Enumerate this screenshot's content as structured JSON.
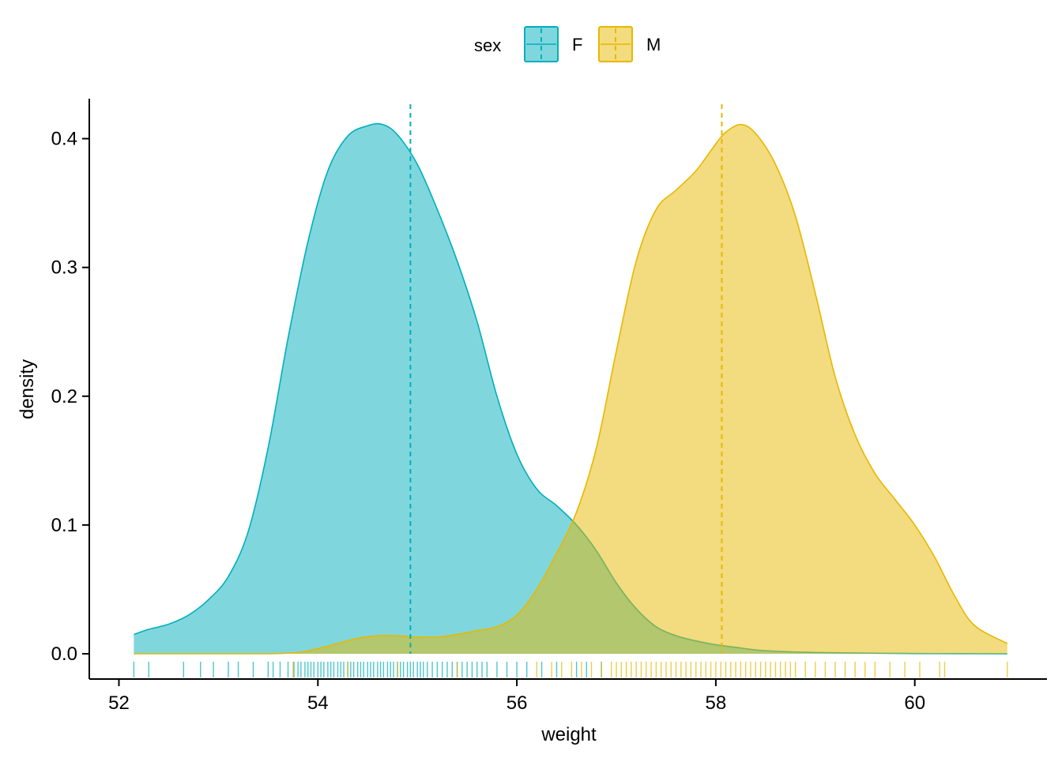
{
  "chart_data": {
    "type": "area",
    "title": "",
    "xlabel": "weight",
    "ylabel": "density",
    "xlim": [
      51.9,
      61.2
    ],
    "ylim": [
      -0.02,
      0.43
    ],
    "x_ticks": [
      52,
      54,
      56,
      58,
      60
    ],
    "y_ticks": [
      0.0,
      0.1,
      0.2,
      0.3,
      0.4
    ],
    "x_tick_labels": [
      "52",
      "54",
      "56",
      "58",
      "60"
    ],
    "y_tick_labels": [
      "0.0",
      "0.1",
      "0.2",
      "0.3",
      "0.4"
    ],
    "grid": false,
    "legend": {
      "title": "sex",
      "position": "top"
    },
    "series": [
      {
        "name": "F",
        "color": "#00AFBB",
        "fill_opacity": 0.5,
        "mean": 54.93,
        "x": [
          52.15,
          52.3,
          52.5,
          52.7,
          52.9,
          53.1,
          53.3,
          53.5,
          53.7,
          53.9,
          54.1,
          54.3,
          54.5,
          54.65,
          54.8,
          55.0,
          55.2,
          55.4,
          55.6,
          55.8,
          56.0,
          56.2,
          56.4,
          56.6,
          56.8,
          57.0,
          57.2,
          57.4,
          57.6,
          57.8,
          58.0,
          58.2,
          58.4,
          58.6,
          59.0,
          59.5,
          60.0,
          60.5,
          60.93
        ],
        "y": [
          0.015,
          0.019,
          0.023,
          0.03,
          0.042,
          0.06,
          0.095,
          0.16,
          0.245,
          0.32,
          0.375,
          0.402,
          0.41,
          0.411,
          0.403,
          0.38,
          0.345,
          0.305,
          0.258,
          0.2,
          0.155,
          0.128,
          0.115,
          0.1,
          0.08,
          0.055,
          0.035,
          0.021,
          0.014,
          0.01,
          0.007,
          0.005,
          0.003,
          0.002,
          0.001,
          0.0005,
          0.0002,
          0.0001,
          0.0
        ]
      },
      {
        "name": "M",
        "color": "#E7B800",
        "fill_opacity": 0.5,
        "mean": 58.06,
        "x": [
          52.15,
          53.0,
          53.5,
          53.8,
          54.0,
          54.2,
          54.4,
          54.6,
          54.8,
          55.0,
          55.2,
          55.4,
          55.6,
          55.8,
          56.0,
          56.2,
          56.4,
          56.6,
          56.8,
          57.0,
          57.2,
          57.4,
          57.6,
          57.8,
          58.0,
          58.1,
          58.25,
          58.4,
          58.6,
          58.8,
          59.0,
          59.2,
          59.4,
          59.6,
          59.8,
          60.0,
          60.2,
          60.4,
          60.6,
          60.93
        ],
        "y": [
          0.0,
          0.0,
          0.0,
          0.001,
          0.004,
          0.008,
          0.012,
          0.014,
          0.014,
          0.013,
          0.013,
          0.015,
          0.018,
          0.021,
          0.03,
          0.05,
          0.078,
          0.11,
          0.16,
          0.235,
          0.305,
          0.345,
          0.36,
          0.375,
          0.396,
          0.405,
          0.411,
          0.404,
          0.38,
          0.34,
          0.28,
          0.215,
          0.17,
          0.14,
          0.12,
          0.1,
          0.075,
          0.045,
          0.022,
          0.008
        ]
      }
    ],
    "rug": {
      "F": [
        52.15,
        52.3,
        52.65,
        52.82,
        52.95,
        53.1,
        53.2,
        53.35,
        53.5,
        53.55,
        53.62,
        53.7,
        53.76,
        53.8,
        53.83,
        53.87,
        53.9,
        53.93,
        53.96,
        54.0,
        54.03,
        54.06,
        54.1,
        54.13,
        54.16,
        54.2,
        54.23,
        54.26,
        54.3,
        54.33,
        54.36,
        54.4,
        54.43,
        54.46,
        54.5,
        54.53,
        54.56,
        54.6,
        54.63,
        54.66,
        54.7,
        54.73,
        54.76,
        54.8,
        54.83,
        54.86,
        54.9,
        54.93,
        54.96,
        55.0,
        55.03,
        55.06,
        55.1,
        55.15,
        55.2,
        55.25,
        55.3,
        55.35,
        55.4,
        55.45,
        55.5,
        55.55,
        55.6,
        55.65,
        55.7,
        55.8,
        55.9,
        56.0,
        56.1,
        56.25,
        56.4,
        56.6,
        56.7,
        56.85
      ],
      "M": [
        53.75,
        54.3,
        54.8,
        55.4,
        56.2,
        56.35,
        56.45,
        56.55,
        56.65,
        56.75,
        56.85,
        56.95,
        57.0,
        57.05,
        57.1,
        57.15,
        57.2,
        57.25,
        57.3,
        57.35,
        57.4,
        57.45,
        57.5,
        57.55,
        57.6,
        57.65,
        57.7,
        57.75,
        57.8,
        57.85,
        57.9,
        57.95,
        58.0,
        58.05,
        58.1,
        58.15,
        58.2,
        58.25,
        58.3,
        58.35,
        58.4,
        58.45,
        58.5,
        58.55,
        58.6,
        58.65,
        58.7,
        58.75,
        58.8,
        58.9,
        59.0,
        59.1,
        59.2,
        59.3,
        59.4,
        59.5,
        59.6,
        59.75,
        59.9,
        60.05,
        60.25,
        60.3,
        60.93
      ]
    }
  }
}
